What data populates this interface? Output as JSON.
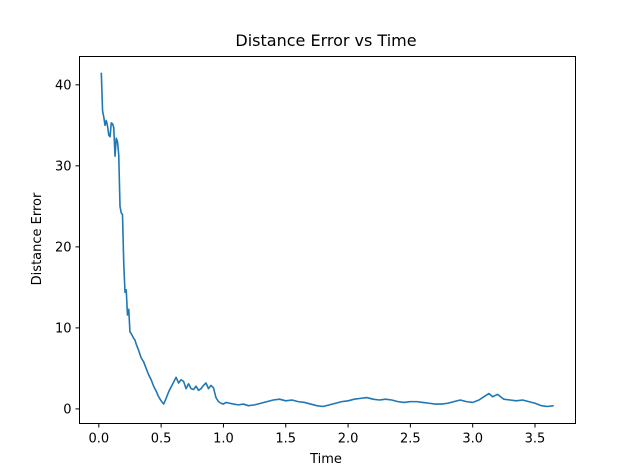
{
  "chart_data": {
    "type": "line",
    "title": "Distance Error vs Time",
    "xlabel": "Time",
    "ylabel": "Distance Error",
    "xlim": [
      -0.155,
      3.825
    ],
    "ylim": [
      -1.8,
      43.5
    ],
    "xticks": [
      {
        "value": 0.0,
        "label": "0.0"
      },
      {
        "value": 0.5,
        "label": "0.5"
      },
      {
        "value": 1.0,
        "label": "1.0"
      },
      {
        "value": 1.5,
        "label": "1.5"
      },
      {
        "value": 2.0,
        "label": "2.0"
      },
      {
        "value": 2.5,
        "label": "2.5"
      },
      {
        "value": 3.0,
        "label": "3.0"
      },
      {
        "value": 3.5,
        "label": "3.5"
      }
    ],
    "yticks": [
      {
        "value": 0,
        "label": "0"
      },
      {
        "value": 10,
        "label": "10"
      },
      {
        "value": 20,
        "label": "20"
      },
      {
        "value": 30,
        "label": "30"
      },
      {
        "value": 40,
        "label": "40"
      }
    ],
    "grid": false,
    "series": [
      {
        "color": "#1f77b4",
        "x": [
          0.02,
          0.03,
          0.04,
          0.05,
          0.06,
          0.07,
          0.08,
          0.09,
          0.1,
          0.11,
          0.12,
          0.13,
          0.14,
          0.15,
          0.16,
          0.17,
          0.18,
          0.19,
          0.2,
          0.21,
          0.22,
          0.23,
          0.24,
          0.25,
          0.26,
          0.27,
          0.28,
          0.29,
          0.3,
          0.32,
          0.34,
          0.36,
          0.38,
          0.4,
          0.42,
          0.44,
          0.46,
          0.48,
          0.5,
          0.52,
          0.54,
          0.56,
          0.58,
          0.6,
          0.62,
          0.64,
          0.66,
          0.68,
          0.7,
          0.72,
          0.74,
          0.76,
          0.78,
          0.8,
          0.82,
          0.84,
          0.86,
          0.88,
          0.9,
          0.92,
          0.94,
          0.96,
          0.98,
          1.0,
          1.02,
          1.05,
          1.08,
          1.12,
          1.16,
          1.2,
          1.25,
          1.3,
          1.35,
          1.4,
          1.45,
          1.5,
          1.55,
          1.6,
          1.65,
          1.7,
          1.75,
          1.8,
          1.85,
          1.9,
          1.95,
          2.0,
          2.05,
          2.1,
          2.15,
          2.2,
          2.25,
          2.3,
          2.35,
          2.4,
          2.45,
          2.5,
          2.55,
          2.6,
          2.65,
          2.7,
          2.75,
          2.8,
          2.85,
          2.9,
          2.95,
          3.0,
          3.05,
          3.1,
          3.13,
          3.16,
          3.2,
          3.25,
          3.3,
          3.35,
          3.4,
          3.45,
          3.5,
          3.55,
          3.6,
          3.65
        ],
        "y": [
          41.5,
          36.8,
          36.0,
          35.0,
          35.6,
          34.9,
          33.8,
          33.6,
          35.3,
          35.2,
          34.7,
          31.2,
          33.4,
          33.0,
          31.3,
          25.0,
          24.2,
          24.0,
          18.0,
          14.4,
          14.7,
          11.6,
          12.3,
          9.5,
          9.3,
          9.0,
          8.7,
          8.5,
          8.0,
          7.2,
          6.3,
          5.8,
          5.0,
          4.2,
          3.6,
          2.8,
          2.2,
          1.5,
          1.0,
          0.6,
          1.3,
          2.1,
          2.7,
          3.3,
          3.9,
          3.2,
          3.6,
          3.4,
          2.5,
          3.1,
          2.5,
          2.4,
          2.8,
          2.3,
          2.5,
          2.9,
          3.2,
          2.5,
          2.9,
          2.6,
          1.4,
          0.9,
          0.7,
          0.6,
          0.8,
          0.7,
          0.6,
          0.5,
          0.6,
          0.4,
          0.5,
          0.7,
          0.9,
          1.1,
          1.2,
          1.0,
          1.1,
          0.9,
          0.8,
          0.6,
          0.4,
          0.3,
          0.5,
          0.7,
          0.9,
          1.0,
          1.2,
          1.3,
          1.4,
          1.2,
          1.1,
          1.2,
          1.1,
          0.9,
          0.8,
          0.9,
          0.9,
          0.8,
          0.7,
          0.6,
          0.6,
          0.7,
          0.9,
          1.1,
          0.9,
          0.8,
          1.1,
          1.6,
          1.9,
          1.5,
          1.8,
          1.2,
          1.1,
          1.0,
          1.1,
          0.9,
          0.7,
          0.4,
          0.3,
          0.4
        ]
      }
    ]
  }
}
